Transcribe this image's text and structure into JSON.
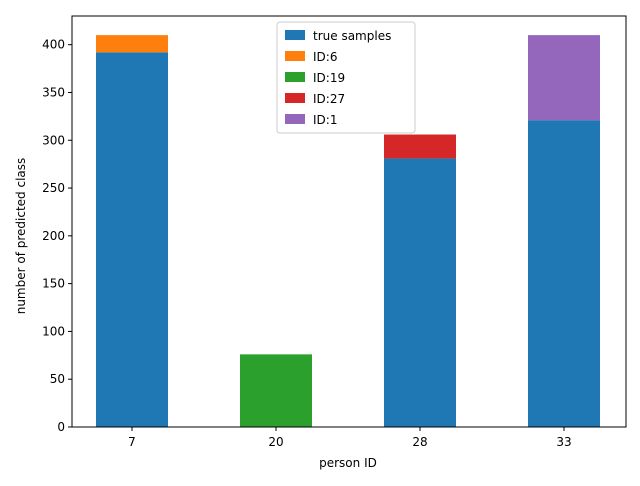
{
  "chart_data": {
    "type": "bar",
    "stacked": true,
    "title": "",
    "xlabel": "person ID",
    "ylabel": "number of predicted class",
    "categories": [
      "7",
      "20",
      "28",
      "33"
    ],
    "ylim": [
      0,
      430
    ],
    "yticks": [
      0,
      50,
      100,
      150,
      200,
      250,
      300,
      350,
      400
    ],
    "grid": false,
    "legend_position": "top-center",
    "series": [
      {
        "name": "true samples",
        "color": "#1f77b4",
        "values": [
          392,
          0,
          281,
          321
        ]
      },
      {
        "name": "ID:6",
        "color": "#ff7f0e",
        "values": [
          18,
          0,
          0,
          0
        ]
      },
      {
        "name": "ID:19",
        "color": "#2ca02c",
        "values": [
          0,
          76,
          0,
          0
        ]
      },
      {
        "name": "ID:27",
        "color": "#d62728",
        "values": [
          0,
          0,
          25,
          0
        ]
      },
      {
        "name": "ID:1",
        "color": "#9467bd",
        "values": [
          0,
          0,
          0,
          89
        ]
      }
    ]
  }
}
